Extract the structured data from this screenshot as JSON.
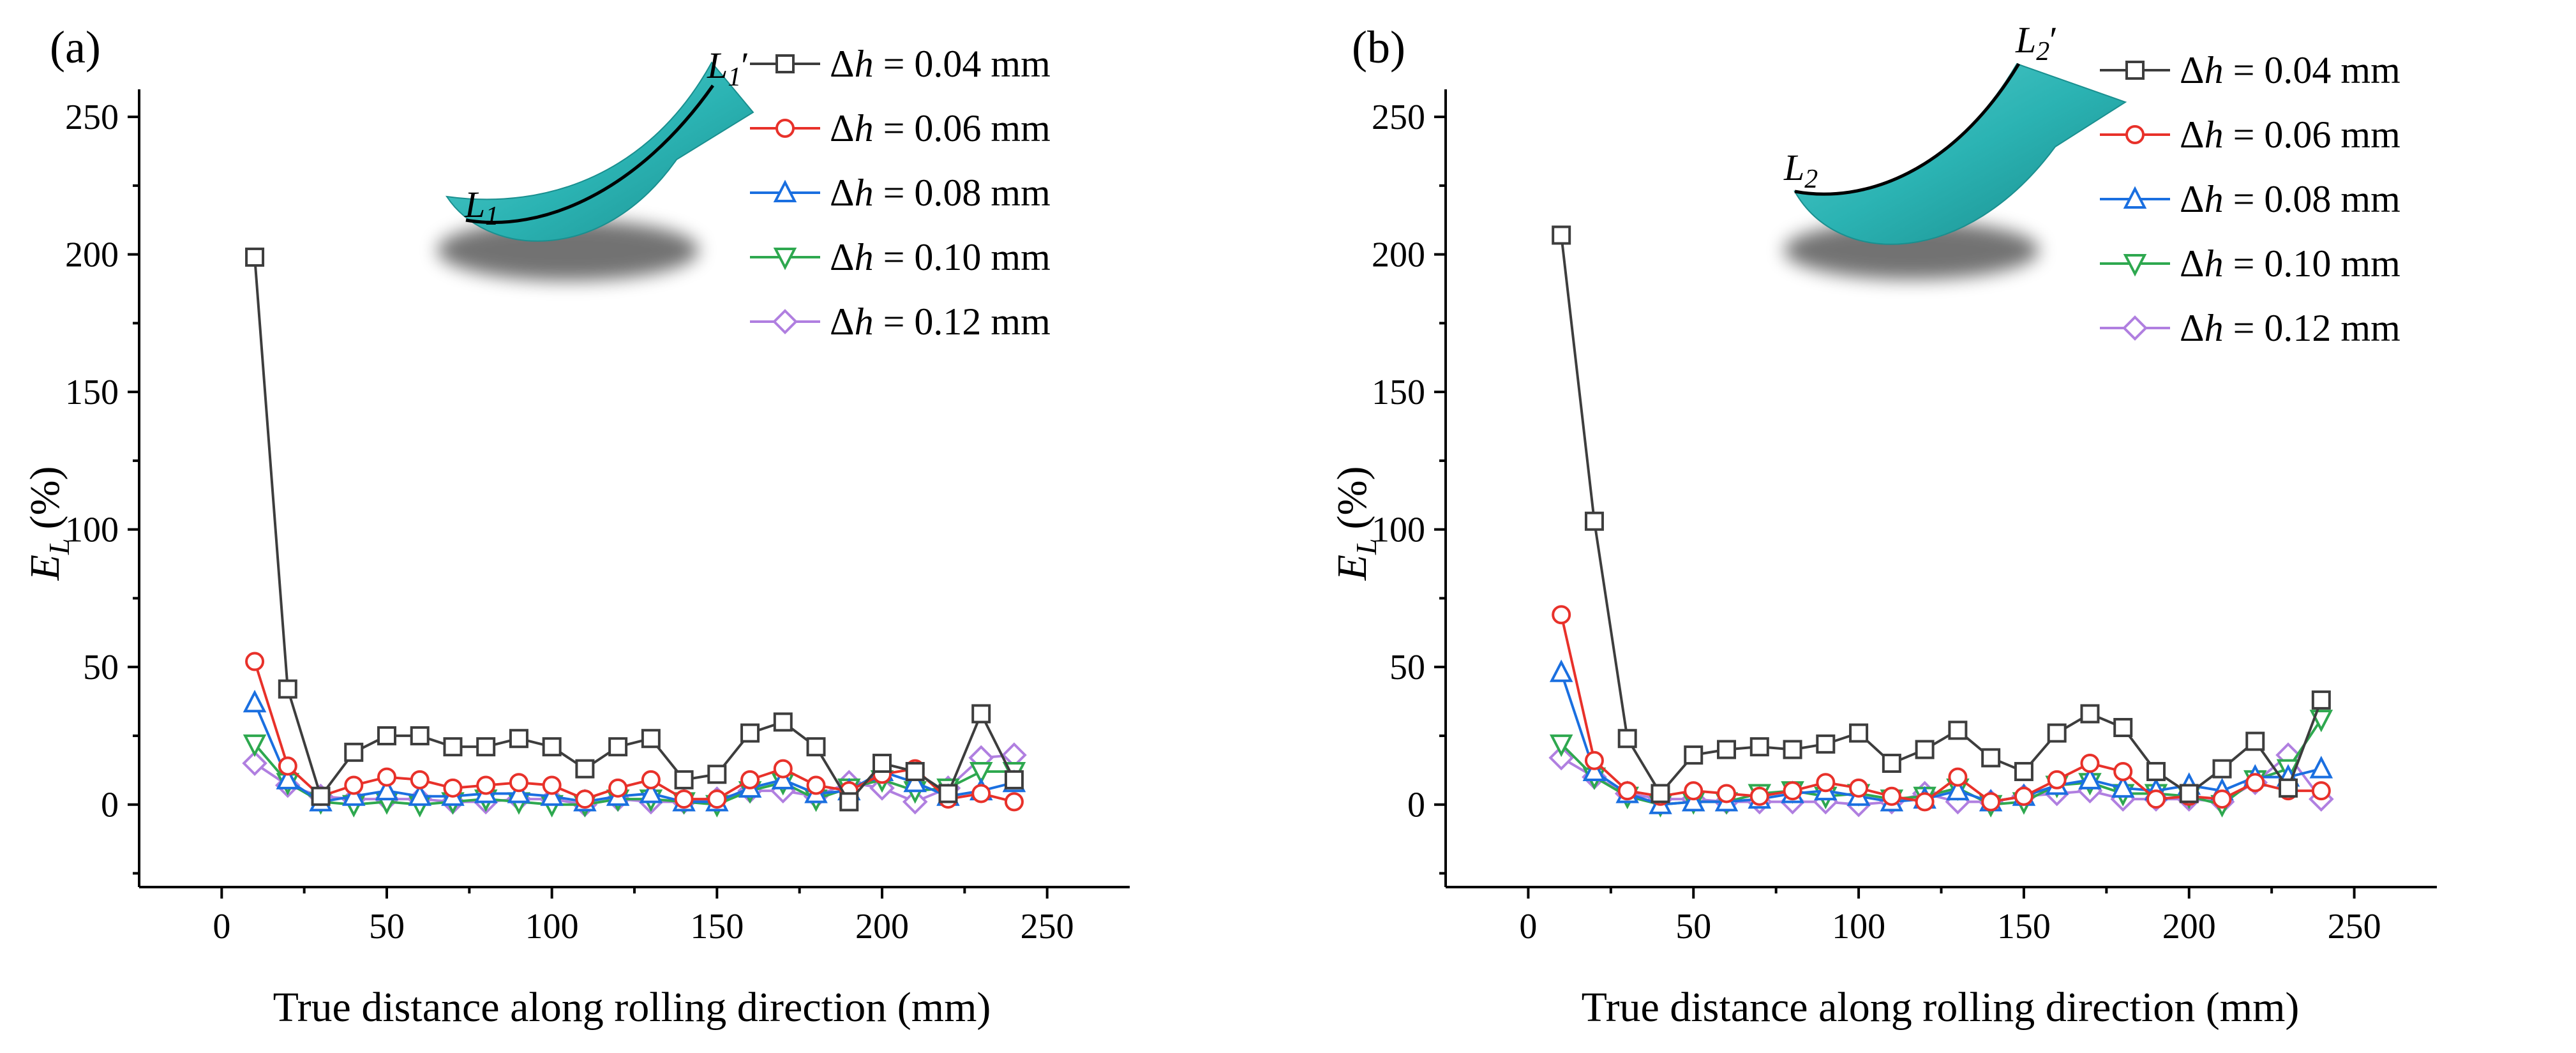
{
  "colors": {
    "s004": "#3d3d3d",
    "s006": "#e8312a",
    "s008": "#1a6fe0",
    "s010": "#2ea84f",
    "s012": "#b07fe0",
    "inset_fill": "#2bb3b3",
    "inset_edge": "#1a8f8f"
  },
  "legend_prefix": "Δh",
  "chart_data": [
    {
      "type": "line",
      "panel_label": "(a)",
      "xlabel": "True distance along rolling direction (mm)",
      "ylabel_main": "E",
      "ylabel_sub": "L",
      "ylabel_unit": "(%)",
      "xlim": [
        -25,
        275
      ],
      "ylim": [
        -30,
        260
      ],
      "xticks": [
        0,
        50,
        100,
        150,
        200,
        250
      ],
      "yticks": [
        0,
        50,
        100,
        150,
        200,
        250
      ],
      "inset_label_start_main": "L",
      "inset_label_start_sub": "1",
      "inset_label_end_main": "L",
      "inset_label_end_sub": "1",
      "inset_label_end_prime": "′",
      "x": [
        10,
        20,
        30,
        40,
        50,
        60,
        70,
        80,
        90,
        100,
        110,
        120,
        130,
        140,
        150,
        160,
        170,
        180,
        190,
        200,
        210,
        220,
        230,
        240
      ],
      "series": [
        {
          "key": "s004",
          "name": " = 0.04 mm",
          "marker": "square",
          "values": [
            199,
            42,
            3,
            19,
            25,
            25,
            21,
            21,
            24,
            21,
            13,
            21,
            24,
            9,
            11,
            26,
            30,
            21,
            1,
            15,
            12,
            4,
            33,
            9
          ]
        },
        {
          "key": "s006",
          "name": " = 0.06 mm",
          "marker": "circle",
          "values": [
            52,
            14,
            3,
            7,
            10,
            9,
            6,
            7,
            8,
            7,
            2,
            6,
            9,
            2,
            2,
            9,
            13,
            7,
            5,
            11,
            13,
            2,
            4,
            1
          ]
        },
        {
          "key": "s008",
          "name": " = 0.08 mm",
          "marker": "triangle-up",
          "values": [
            37,
            9,
            1,
            3,
            5,
            3,
            3,
            4,
            4,
            3,
            1,
            3,
            4,
            1,
            1,
            6,
            9,
            4,
            5,
            12,
            8,
            3,
            5,
            8
          ]
        },
        {
          "key": "s010",
          "name": " = 0.10 mm",
          "marker": "triangle-down",
          "values": [
            22,
            8,
            1,
            0,
            1,
            0,
            1,
            2,
            1,
            0,
            0,
            2,
            2,
            1,
            0,
            5,
            8,
            2,
            6,
            9,
            5,
            6,
            12,
            12
          ]
        },
        {
          "key": "s012",
          "name": " = 0.12 mm",
          "marker": "diamond",
          "values": [
            15,
            7,
            3,
            2,
            2,
            2,
            1,
            1,
            2,
            2,
            0,
            2,
            1,
            1,
            2,
            5,
            5,
            3,
            8,
            6,
            1,
            6,
            17,
            18
          ]
        }
      ]
    },
    {
      "type": "line",
      "panel_label": "(b)",
      "xlabel": "True distance along rolling direction (mm)",
      "ylabel_main": "E",
      "ylabel_sub": "L",
      "ylabel_unit": "(%)",
      "xlim": [
        -25,
        275
      ],
      "ylim": [
        -30,
        260
      ],
      "xticks": [
        0,
        50,
        100,
        150,
        200,
        250
      ],
      "yticks": [
        0,
        50,
        100,
        150,
        200,
        250
      ],
      "inset_label_start_main": "L",
      "inset_label_start_sub": "2",
      "inset_label_end_main": "L",
      "inset_label_end_sub": "2",
      "inset_label_end_prime": "′",
      "x": [
        10,
        20,
        30,
        40,
        50,
        60,
        70,
        80,
        90,
        100,
        110,
        120,
        130,
        140,
        150,
        160,
        170,
        180,
        190,
        200,
        210,
        220,
        230,
        240
      ],
      "series": [
        {
          "key": "s004",
          "name": " = 0.04 mm",
          "marker": "square",
          "values": [
            207,
            103,
            24,
            4,
            18,
            20,
            21,
            20,
            22,
            26,
            15,
            20,
            27,
            17,
            12,
            26,
            33,
            28,
            12,
            4,
            13,
            23,
            6,
            38
          ]
        },
        {
          "key": "s006",
          "name": " = 0.06 mm",
          "marker": "circle",
          "values": [
            69,
            16,
            5,
            3,
            5,
            4,
            3,
            5,
            8,
            6,
            3,
            1,
            10,
            1,
            3,
            9,
            15,
            12,
            2,
            3,
            2,
            8,
            5,
            5
          ]
        },
        {
          "key": "s008",
          "name": " = 0.08 mm",
          "marker": "triangle-up",
          "values": [
            48,
            12,
            4,
            0,
            1,
            1,
            2,
            4,
            5,
            3,
            1,
            2,
            5,
            1,
            3,
            7,
            9,
            6,
            5,
            7,
            5,
            10,
            10,
            13
          ]
        },
        {
          "key": "s010",
          "name": " = 0.10 mm",
          "marker": "triangle-down",
          "values": [
            22,
            10,
            3,
            0,
            1,
            1,
            4,
            5,
            3,
            4,
            2,
            3,
            6,
            0,
            1,
            7,
            8,
            4,
            4,
            3,
            0,
            9,
            13,
            31
          ]
        },
        {
          "key": "s012",
          "name": " = 0.12 mm",
          "marker": "diamond",
          "values": [
            17,
            10,
            4,
            2,
            2,
            1,
            1,
            1,
            1,
            0,
            1,
            4,
            1,
            1,
            3,
            4,
            5,
            2,
            2,
            2,
            1,
            8,
            18,
            2
          ]
        }
      ]
    }
  ]
}
